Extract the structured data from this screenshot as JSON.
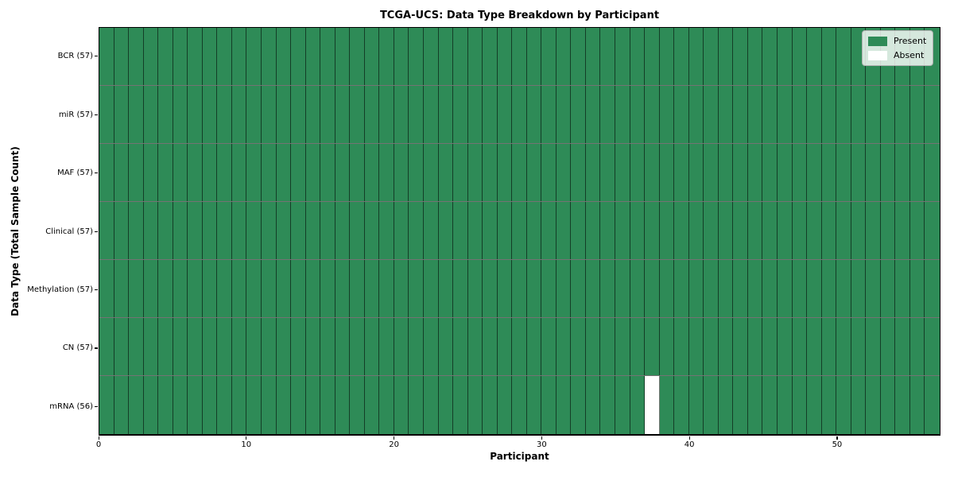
{
  "chart_data": {
    "type": "heatmap",
    "title": "TCGA-UCS: Data Type Breakdown by Participant",
    "xlabel": "Participant",
    "ylabel": "Data Type (Total Sample Count)",
    "x_range": [
      0,
      57
    ],
    "n_participants": 57,
    "x_ticks": [
      0,
      10,
      20,
      30,
      40,
      50
    ],
    "rows": [
      {
        "label": "BCR (57)",
        "data_type": "BCR",
        "total": 57,
        "absent_indices": []
      },
      {
        "label": "miR (57)",
        "data_type": "miR",
        "total": 57,
        "absent_indices": []
      },
      {
        "label": "MAF (57)",
        "data_type": "MAF",
        "total": 57,
        "absent_indices": []
      },
      {
        "label": "Clinical (57)",
        "data_type": "Clinical",
        "total": 57,
        "absent_indices": []
      },
      {
        "label": "Methylation (57)",
        "data_type": "Methylation",
        "total": 57,
        "absent_indices": []
      },
      {
        "label": "CN (57)",
        "data_type": "CN",
        "total": 57,
        "absent_indices": []
      },
      {
        "label": "mRNA (56)",
        "data_type": "mRNA",
        "total": 56,
        "absent_indices": [
          37
        ]
      }
    ],
    "legend": [
      {
        "label": "Present",
        "color": "#2E8B57"
      },
      {
        "label": "Absent",
        "color": "#FFFFFF"
      }
    ],
    "colors": {
      "present": "#2E8B57",
      "absent": "#FFFFFF",
      "cell_edge": "rgba(0,0,0,0.55)",
      "spine": "#000000",
      "background": "#FFFFFF"
    },
    "legend_position": "upper right",
    "grid": "cell-borders"
  }
}
